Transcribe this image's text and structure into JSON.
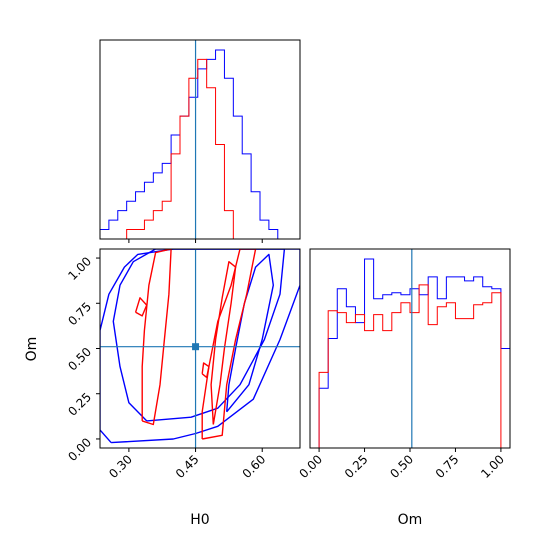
{
  "chart_data": {
    "type": "corner",
    "params": [
      "H0",
      "Om"
    ],
    "truth": {
      "H0": 0.45,
      "Om": 0.51
    },
    "colors": {
      "blue": "#0000ff",
      "red": "#ff0000",
      "truth": "#1f77b4"
    },
    "xlim": {
      "H0": [
        0.235,
        0.685
      ],
      "Om": [
        -0.05,
        1.05
      ]
    },
    "ylim": {
      "Om": [
        -0.05,
        1.05
      ]
    },
    "ticks": {
      "H0": [
        {
          "v": 0.3,
          "label": "0.30"
        },
        {
          "v": 0.45,
          "label": "0.45"
        },
        {
          "v": 0.6,
          "label": "0.60"
        }
      ],
      "Om": [
        {
          "v": 0.0,
          "label": "0.00"
        },
        {
          "v": 0.25,
          "label": "0.25"
        },
        {
          "v": 0.5,
          "label": "0.50"
        },
        {
          "v": 0.75,
          "label": "0.75"
        },
        {
          "v": 1.0,
          "label": "1.00"
        }
      ]
    },
    "hist_H0": {
      "bin_start": 0.235,
      "bin_width": 0.02,
      "series": [
        {
          "color": "blue",
          "values": [
            1,
            2,
            3,
            4,
            5,
            6,
            7,
            8,
            11,
            13,
            15,
            18,
            19,
            20,
            17,
            13,
            9,
            5,
            2,
            1
          ]
        },
        {
          "color": "red",
          "values": [
            0,
            0,
            0,
            1,
            1,
            2,
            3,
            4,
            9,
            13,
            17,
            19,
            16,
            10,
            3,
            0,
            0,
            0,
            0,
            0
          ]
        }
      ]
    },
    "hist_Om": {
      "bin_start": -0.05,
      "bin_width": 0.05,
      "series": [
        {
          "color": "blue",
          "values": [
            0,
            0.3,
            0.55,
            0.8,
            0.71,
            0.63,
            0.95,
            0.75,
            0.77,
            0.78,
            0.77,
            0.8,
            0.77,
            0.86,
            0.75,
            0.86,
            0.86,
            0.84,
            0.86,
            0.81,
            0.8,
            0.5
          ]
        },
        {
          "color": "red",
          "values": [
            0,
            0.38,
            0.69,
            0.68,
            0.63,
            0.67,
            0.59,
            0.67,
            0.59,
            0.68,
            0.73,
            0.68,
            0.82,
            0.62,
            0.71,
            0.73,
            0.65,
            0.65,
            0.72,
            0.73,
            0.78,
            0
          ]
        }
      ]
    },
    "contours": [
      {
        "color": "blue",
        "points": [
          [
            0.26,
            -0.02
          ],
          [
            0.4,
            0.0
          ],
          [
            0.45,
            0.03
          ],
          [
            0.5,
            0.07
          ],
          [
            0.58,
            0.22
          ],
          [
            0.64,
            0.55
          ],
          [
            0.685,
            0.85
          ],
          [
            0.685,
            1.05
          ],
          [
            0.4,
            1.05
          ],
          [
            0.32,
            1.02
          ],
          [
            0.29,
            0.95
          ],
          [
            0.255,
            0.8
          ],
          [
            0.235,
            0.6
          ],
          [
            0.235,
            0.05
          ],
          [
            0.26,
            -0.02
          ]
        ]
      },
      {
        "color": "blue",
        "points": [
          [
            0.34,
            0.1
          ],
          [
            0.44,
            0.12
          ],
          [
            0.5,
            0.17
          ],
          [
            0.55,
            0.3
          ],
          [
            0.605,
            0.55
          ],
          [
            0.64,
            0.8
          ],
          [
            0.65,
            1.05
          ],
          [
            0.36,
            1.05
          ],
          [
            0.31,
            0.98
          ],
          [
            0.28,
            0.85
          ],
          [
            0.265,
            0.65
          ],
          [
            0.28,
            0.4
          ],
          [
            0.3,
            0.2
          ],
          [
            0.34,
            0.1
          ]
        ]
      },
      {
        "color": "blue",
        "points": [
          [
            0.52,
            0.15
          ],
          [
            0.57,
            0.3
          ],
          [
            0.6,
            0.55
          ],
          [
            0.625,
            0.85
          ],
          [
            0.615,
            1.02
          ],
          [
            0.585,
            0.95
          ],
          [
            0.56,
            0.75
          ],
          [
            0.54,
            0.5
          ],
          [
            0.525,
            0.3
          ],
          [
            0.52,
            0.15
          ]
        ]
      },
      {
        "color": "red",
        "points": [
          [
            0.33,
            0.1
          ],
          [
            0.355,
            0.08
          ],
          [
            0.37,
            0.3
          ],
          [
            0.38,
            0.55
          ],
          [
            0.39,
            0.8
          ],
          [
            0.395,
            1.05
          ],
          [
            0.36,
            1.03
          ],
          [
            0.345,
            0.85
          ],
          [
            0.335,
            0.6
          ],
          [
            0.33,
            0.4
          ],
          [
            0.33,
            0.1
          ]
        ]
      },
      {
        "color": "red",
        "points": [
          [
            0.465,
            0.0
          ],
          [
            0.51,
            0.02
          ],
          [
            0.52,
            0.3
          ],
          [
            0.54,
            0.55
          ],
          [
            0.565,
            0.8
          ],
          [
            0.585,
            1.05
          ],
          [
            0.55,
            1.05
          ],
          [
            0.53,
            0.85
          ],
          [
            0.5,
            0.65
          ],
          [
            0.48,
            0.4
          ],
          [
            0.465,
            0.15
          ],
          [
            0.465,
            0.0
          ]
        ]
      },
      {
        "color": "red",
        "points": [
          [
            0.49,
            0.08
          ],
          [
            0.505,
            0.3
          ],
          [
            0.515,
            0.5
          ],
          [
            0.53,
            0.75
          ],
          [
            0.54,
            0.95
          ],
          [
            0.525,
            0.98
          ],
          [
            0.51,
            0.78
          ],
          [
            0.495,
            0.55
          ],
          [
            0.485,
            0.3
          ],
          [
            0.49,
            0.08
          ]
        ]
      },
      {
        "color": "red",
        "points": [
          [
            0.315,
            0.7
          ],
          [
            0.33,
            0.68
          ],
          [
            0.34,
            0.74
          ],
          [
            0.325,
            0.78
          ],
          [
            0.315,
            0.7
          ]
        ]
      },
      {
        "color": "red",
        "points": [
          [
            0.465,
            0.36
          ],
          [
            0.475,
            0.34
          ],
          [
            0.48,
            0.4
          ],
          [
            0.468,
            0.42
          ],
          [
            0.465,
            0.36
          ]
        ]
      }
    ]
  }
}
